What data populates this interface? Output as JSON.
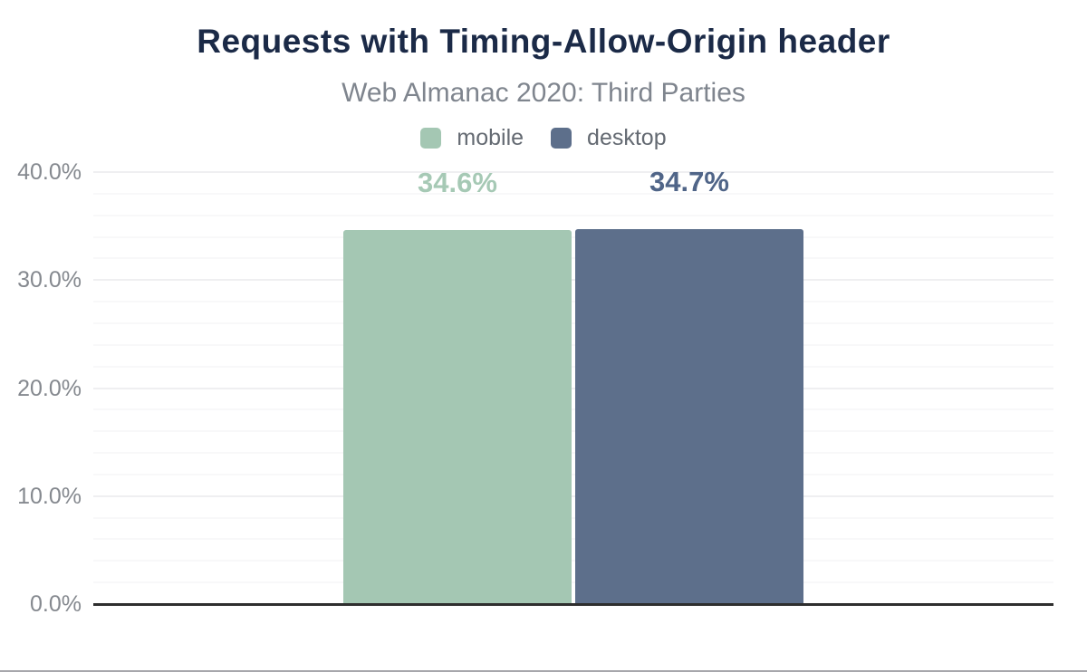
{
  "header": {
    "title": "Requests with Timing-Allow-Origin header",
    "subtitle": "Web Almanac 2020: Third Parties",
    "title_color": "#1b2a47",
    "subtitle_color": "#7f858e"
  },
  "legend": {
    "items": [
      {
        "label": "mobile",
        "color": "#a4c7b3"
      },
      {
        "label": "desktop",
        "color": "#5d6f8b"
      }
    ],
    "text_color": "#646a72"
  },
  "chart_data": {
    "type": "bar",
    "title": "Requests with Timing-Allow-Origin header",
    "subtitle": "Web Almanac 2020: Third Parties",
    "series": [
      {
        "name": "mobile",
        "value": 34.6,
        "data_label": "34.6%",
        "bar_color": "#a4c7b3",
        "label_color": "#a6c9b5"
      },
      {
        "name": "desktop",
        "value": 34.7,
        "data_label": "34.7%",
        "bar_color": "#5d6f8b",
        "label_color": "#506588"
      }
    ],
    "xlabel": "",
    "ylabel": "",
    "ylim": [
      0,
      40
    ],
    "y_major_step": 10,
    "y_minor_step": 2,
    "y_tick_labels": [
      "0.0%",
      "10.0%",
      "20.0%",
      "30.0%",
      "40.0%"
    ],
    "grid": true,
    "legend_position": "top",
    "colors": {
      "major_grid": "#efeff1",
      "minor_grid": "#f8f8f9",
      "axis_line": "#2e2e2e",
      "tick_label": "#85898f"
    }
  },
  "page": {
    "bottom_border_color": "#a7a7ac"
  }
}
